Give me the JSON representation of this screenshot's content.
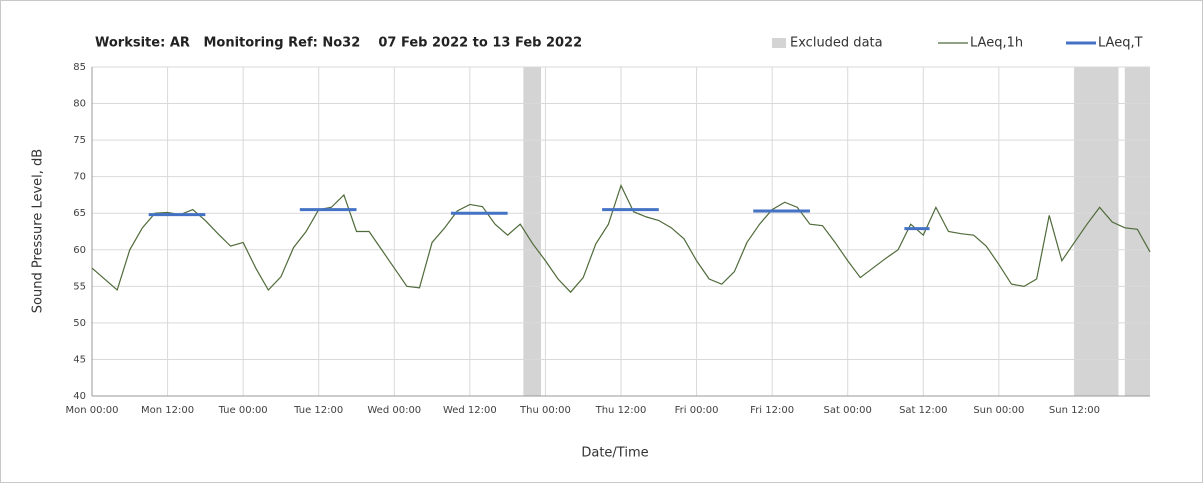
{
  "chart_data": {
    "type": "line",
    "title": "Worksite: AR   Monitoring Ref: No32    07 Feb 2022 to 13 Feb 2022",
    "xlabel": "Date/Time",
    "ylabel": "Sound Pressure Level, dB",
    "xlim": [
      0,
      168
    ],
    "xticks": [
      {
        "value": 0,
        "label": "Mon 00:00"
      },
      {
        "value": 12,
        "label": "Mon 12:00"
      },
      {
        "value": 24,
        "label": "Tue 00:00"
      },
      {
        "value": 36,
        "label": "Tue 12:00"
      },
      {
        "value": 48,
        "label": "Wed 00:00"
      },
      {
        "value": 60,
        "label": "Wed 12:00"
      },
      {
        "value": 72,
        "label": "Thu 00:00"
      },
      {
        "value": 84,
        "label": "Thu 12:00"
      },
      {
        "value": 96,
        "label": "Fri 00:00"
      },
      {
        "value": 108,
        "label": "Fri 12:00"
      },
      {
        "value": 120,
        "label": "Sat 00:00"
      },
      {
        "value": 132,
        "label": "Sat 12:00"
      },
      {
        "value": 144,
        "label": "Sun 00:00"
      },
      {
        "value": 156,
        "label": "Sun 12:00"
      }
    ],
    "ylim": [
      40,
      85
    ],
    "yticks": [
      40,
      45,
      50,
      55,
      60,
      65,
      70,
      75,
      80,
      85
    ],
    "grid": true,
    "legend": "top-right",
    "excluded": {
      "name": "Excluded data",
      "color": "#d4d4d4",
      "ranges": [
        [
          68.5,
          71.3
        ],
        [
          156,
          163
        ],
        [
          164,
          168
        ]
      ]
    },
    "series": [
      {
        "name": "LAeq,1h",
        "color": "#4f6b3a",
        "x": [
          0,
          2,
          4,
          6,
          8,
          10,
          12,
          14,
          16,
          18,
          20,
          22,
          24,
          26,
          28,
          30,
          32,
          34,
          36,
          38,
          40,
          42,
          44,
          46,
          48,
          50,
          52,
          54,
          56,
          58,
          60,
          62,
          64,
          66,
          68,
          70,
          72,
          74,
          76,
          78,
          80,
          82,
          84,
          86,
          88,
          90,
          92,
          94,
          96,
          98,
          100,
          102,
          104,
          106,
          108,
          110,
          112,
          114,
          116,
          118,
          120,
          122,
          124,
          126,
          128,
          130,
          132,
          134,
          136,
          138,
          140,
          142,
          144,
          146,
          148,
          150,
          152,
          154,
          156,
          158,
          160,
          162,
          164,
          166,
          168
        ],
        "values": [
          57.5,
          56,
          54.5,
          60,
          63,
          65,
          65.1,
          64.8,
          65.5,
          64,
          62.2,
          60.5,
          61,
          57.5,
          54.5,
          56.3,
          60.3,
          62.5,
          65.5,
          65.8,
          67.5,
          62.5,
          62.5,
          60,
          57.5,
          55,
          54.8,
          61,
          63,
          65.3,
          66.2,
          65.9,
          63.5,
          62,
          63.5,
          60.8,
          58.5,
          56,
          54.2,
          56.2,
          60.8,
          63.5,
          68.8,
          65.2,
          64.5,
          64,
          63,
          61.5,
          58.5,
          56,
          55.3,
          57,
          61,
          63.5,
          65.5,
          66.5,
          65.8,
          63.5,
          63.3,
          61,
          58.5,
          56.2,
          57.5,
          58.8,
          60,
          63.5,
          62,
          65.8,
          62.5,
          62.2,
          62,
          60.5,
          58,
          55.3,
          55,
          56,
          64.7,
          58.5,
          61,
          63.5,
          65.8,
          63.8,
          63,
          62.8,
          59.7
        ]
      },
      {
        "name": "LAeq,T",
        "color": "#4472c4",
        "segments": [
          {
            "start": 9,
            "end": 18,
            "value": 64.8
          },
          {
            "start": 33,
            "end": 42,
            "value": 65.5
          },
          {
            "start": 57,
            "end": 66,
            "value": 65.0
          },
          {
            "start": 81,
            "end": 90,
            "value": 65.5
          },
          {
            "start": 105,
            "end": 114,
            "value": 65.3
          },
          {
            "start": 129,
            "end": 133,
            "value": 62.9
          }
        ]
      }
    ]
  }
}
